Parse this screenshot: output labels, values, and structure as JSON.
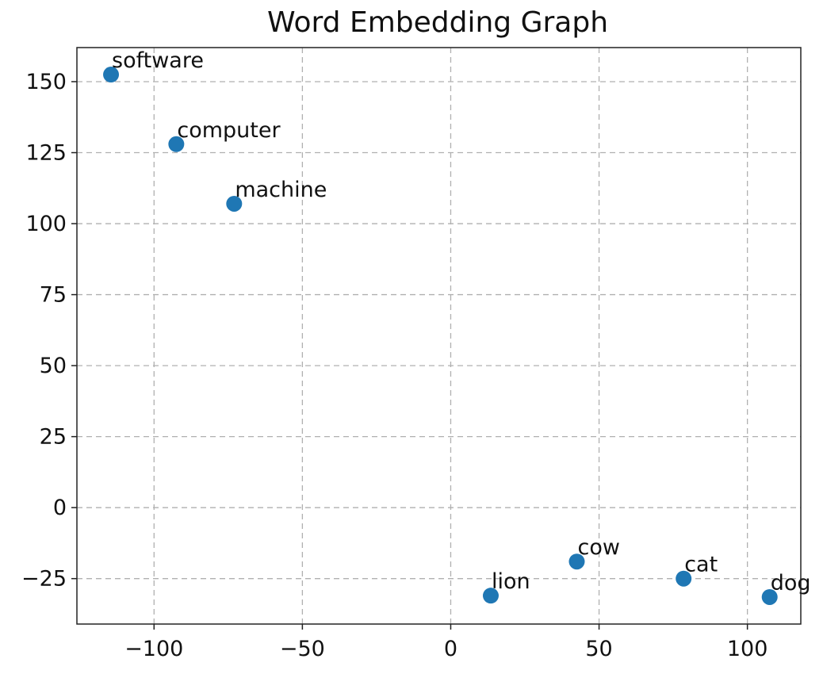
{
  "chart_data": {
    "type": "scatter",
    "title": "Word Embedding Graph",
    "xlabel": "",
    "ylabel": "",
    "xlim": [
      -126,
      118
    ],
    "ylim": [
      -41,
      162
    ],
    "xticks": [
      -100,
      -50,
      0,
      50,
      100
    ],
    "yticks": [
      -25,
      0,
      25,
      50,
      75,
      100,
      125,
      150
    ],
    "xtick_labels": [
      "−100",
      "−50",
      "0",
      "50",
      "100"
    ],
    "ytick_labels": [
      "−25",
      "0",
      "25",
      "50",
      "75",
      "100",
      "125",
      "150"
    ],
    "grid": true,
    "point_color": "#1f77b4",
    "points": [
      {
        "label": "software",
        "x": -114.5,
        "y": 152.5
      },
      {
        "label": "computer",
        "x": -92.5,
        "y": 128
      },
      {
        "label": "machine",
        "x": -73,
        "y": 107
      },
      {
        "label": "cow",
        "x": 42.5,
        "y": -19
      },
      {
        "label": "lion",
        "x": 13.5,
        "y": -31
      },
      {
        "label": "cat",
        "x": 78.5,
        "y": -25
      },
      {
        "label": "dog",
        "x": 107.5,
        "y": -31.5
      }
    ]
  }
}
